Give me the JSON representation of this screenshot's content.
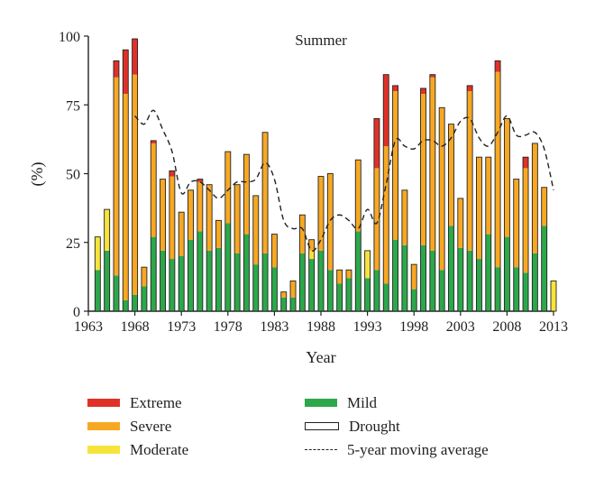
{
  "chart_data": {
    "type": "bar",
    "title": "Summer",
    "xlabel": "Year",
    "ylabel": "(%)",
    "x_range": [
      1963,
      2013
    ],
    "ylim": [
      0,
      100
    ],
    "x_ticks": [
      "1963",
      "1968",
      "1973",
      "1978",
      "1983",
      "1988",
      "1993",
      "1998",
      "2003",
      "2008",
      "2013"
    ],
    "y_ticks": [
      "0",
      "25",
      "50",
      "75",
      "100"
    ],
    "stacked": true,
    "years": [
      1964,
      1965,
      1966,
      1967,
      1968,
      1969,
      1970,
      1971,
      1972,
      1973,
      1974,
      1975,
      1976,
      1977,
      1978,
      1979,
      1980,
      1981,
      1982,
      1983,
      1984,
      1985,
      1986,
      1987,
      1988,
      1989,
      1990,
      1991,
      1992,
      1993,
      1994,
      1995,
      1996,
      1997,
      1998,
      1999,
      2000,
      2001,
      2002,
      2003,
      2004,
      2005,
      2006,
      2007,
      2008,
      2009,
      2010,
      2011,
      2012,
      2013
    ],
    "series": [
      {
        "name": "Mild",
        "color": "#2ca84a",
        "values": [
          15,
          22,
          13,
          4,
          6,
          9,
          27,
          22,
          19,
          20,
          26,
          29,
          22,
          23,
          32,
          21,
          28,
          17,
          21,
          16,
          5,
          5,
          21,
          19,
          22,
          15,
          10,
          12,
          29,
          12,
          15,
          10,
          26,
          24,
          8,
          24,
          22,
          15,
          31,
          23,
          22,
          19,
          28,
          16,
          27,
          16,
          14,
          21,
          31,
          0
        ]
      },
      {
        "name": "Moderate",
        "color": "#f7e43a",
        "values": [
          12,
          15,
          0,
          0,
          0,
          0,
          0,
          0,
          0,
          0,
          0,
          0,
          0,
          0,
          0,
          0,
          0,
          0,
          0,
          0,
          0,
          0,
          0,
          3,
          0,
          0,
          0,
          0,
          0,
          10,
          0,
          0,
          0,
          0,
          0,
          0,
          0,
          0,
          0,
          0,
          0,
          0,
          0,
          0,
          0,
          0,
          0,
          0,
          0,
          11
        ]
      },
      {
        "name": "Severe",
        "color": "#f7a823",
        "values": [
          0,
          0,
          72,
          75,
          80,
          7,
          34,
          26,
          30,
          16,
          18,
          18,
          24,
          10,
          26,
          25,
          29,
          25,
          44,
          12,
          2,
          6,
          14,
          4,
          27,
          35,
          5,
          3,
          26,
          0,
          37,
          50,
          54,
          20,
          9,
          55,
          63,
          59,
          37,
          18,
          58,
          37,
          28,
          71,
          43,
          32,
          38,
          40,
          14,
          0
        ]
      },
      {
        "name": "Extreme",
        "color": "#e03128",
        "values": [
          0,
          0,
          6,
          16,
          13,
          0,
          1,
          0,
          2,
          0,
          0,
          1,
          0,
          0,
          0,
          0,
          0,
          0,
          0,
          0,
          0,
          0,
          0,
          0,
          0,
          0,
          0,
          0,
          0,
          0,
          18,
          26,
          2,
          0,
          0,
          2,
          1,
          0,
          0,
          0,
          2,
          0,
          0,
          4,
          0,
          0,
          4,
          0,
          0,
          0
        ]
      }
    ],
    "moving_average": {
      "name": "5-year moving average",
      "years": [
        1968,
        1969,
        1970,
        1971,
        1972,
        1973,
        1974,
        1975,
        1976,
        1977,
        1978,
        1979,
        1980,
        1981,
        1982,
        1983,
        1984,
        1985,
        1986,
        1987,
        1988,
        1989,
        1990,
        1991,
        1992,
        1993,
        1994,
        1995,
        1996,
        1997,
        1998,
        1999,
        2000,
        2001,
        2002,
        2003,
        2004,
        2005,
        2006,
        2007,
        2008,
        2009,
        2010,
        2011,
        2012,
        2013
      ],
      "values": [
        71,
        68,
        73,
        66,
        58,
        43,
        47,
        47,
        44,
        41,
        44,
        47,
        47,
        48,
        54,
        48,
        33,
        30,
        30,
        22,
        26,
        33,
        35,
        33,
        30,
        37,
        32,
        46,
        62,
        60,
        59,
        62,
        62,
        60,
        63,
        69,
        70,
        63,
        60,
        65,
        71,
        64,
        64,
        65,
        59,
        44
      ]
    },
    "legend": {
      "placement": "bottom",
      "entries": [
        "Extreme",
        "Severe",
        "Moderate",
        "Mild",
        "Drought",
        "5-year moving average"
      ]
    }
  }
}
